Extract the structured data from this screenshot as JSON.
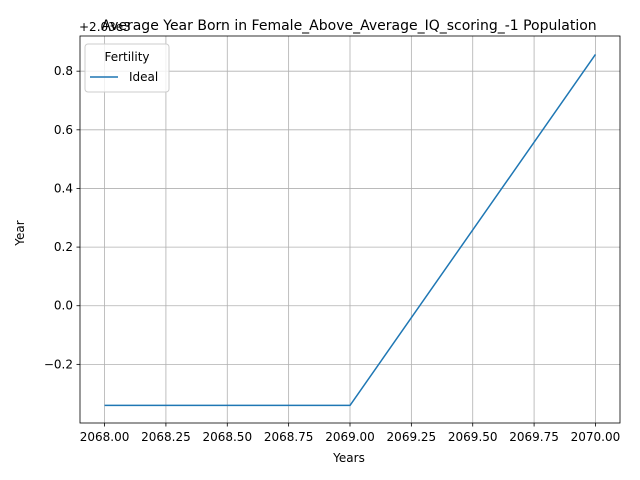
{
  "chart_data": {
    "type": "line",
    "title": "Average Year Born in Female_Above_Average_IQ_scoring_-1 Population",
    "xlabel": "Years",
    "ylabel": "Year",
    "offset_label": "+2.03e3",
    "xlim": [
      2067.9,
      2070.1
    ],
    "ylim": [
      -0.4,
      0.92
    ],
    "x_ticks": [
      2068.0,
      2068.25,
      2068.5,
      2068.75,
      2069.0,
      2069.25,
      2069.5,
      2069.75,
      2070.0
    ],
    "x_tick_labels": [
      "2068.00",
      "2068.25",
      "2068.50",
      "2068.75",
      "2069.00",
      "2069.25",
      "2069.50",
      "2069.75",
      "2070.00"
    ],
    "y_ticks": [
      -0.2,
      0.0,
      0.2,
      0.4,
      0.6,
      0.8
    ],
    "y_tick_labels": [
      "−0.2",
      "0.0",
      "0.2",
      "0.4",
      "0.6",
      "0.8"
    ],
    "grid": true,
    "legend": {
      "title": "Fertility",
      "location": "upper left"
    },
    "series": [
      {
        "name": "Ideal",
        "color": "#1f77b4",
        "x": [
          2068,
          2069,
          2070
        ],
        "y": [
          -0.34,
          -0.34,
          0.857
        ]
      }
    ]
  }
}
